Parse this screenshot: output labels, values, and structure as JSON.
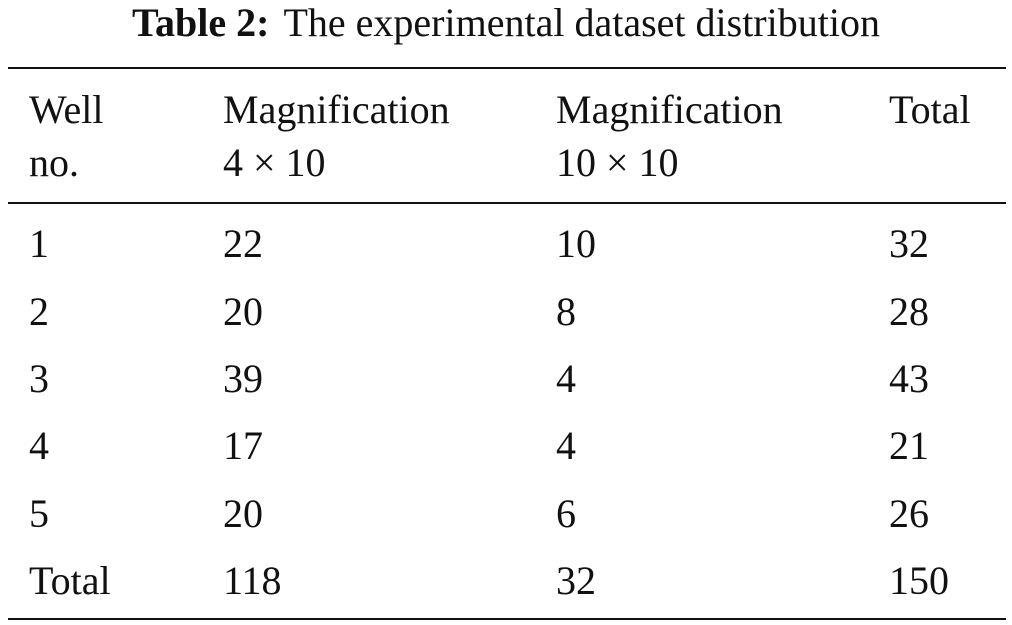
{
  "caption": {
    "label": "Table 2:",
    "text": "The experimental dataset distribution"
  },
  "table": {
    "headers": [
      {
        "line1": "Well",
        "line2": "no."
      },
      {
        "line1": "Magnification",
        "line2": "4 × 10"
      },
      {
        "line1": "Magnification",
        "line2": "10 × 10"
      },
      {
        "line1": "Total",
        "line2": ""
      }
    ],
    "rows": [
      [
        "1",
        "22",
        "10",
        "32"
      ],
      [
        "2",
        "20",
        "8",
        "28"
      ],
      [
        "3",
        "39",
        "4",
        "43"
      ],
      [
        "4",
        "17",
        "4",
        "21"
      ],
      [
        "5",
        "20",
        "6",
        "26"
      ],
      [
        "Total",
        "118",
        "32",
        "150"
      ]
    ]
  }
}
